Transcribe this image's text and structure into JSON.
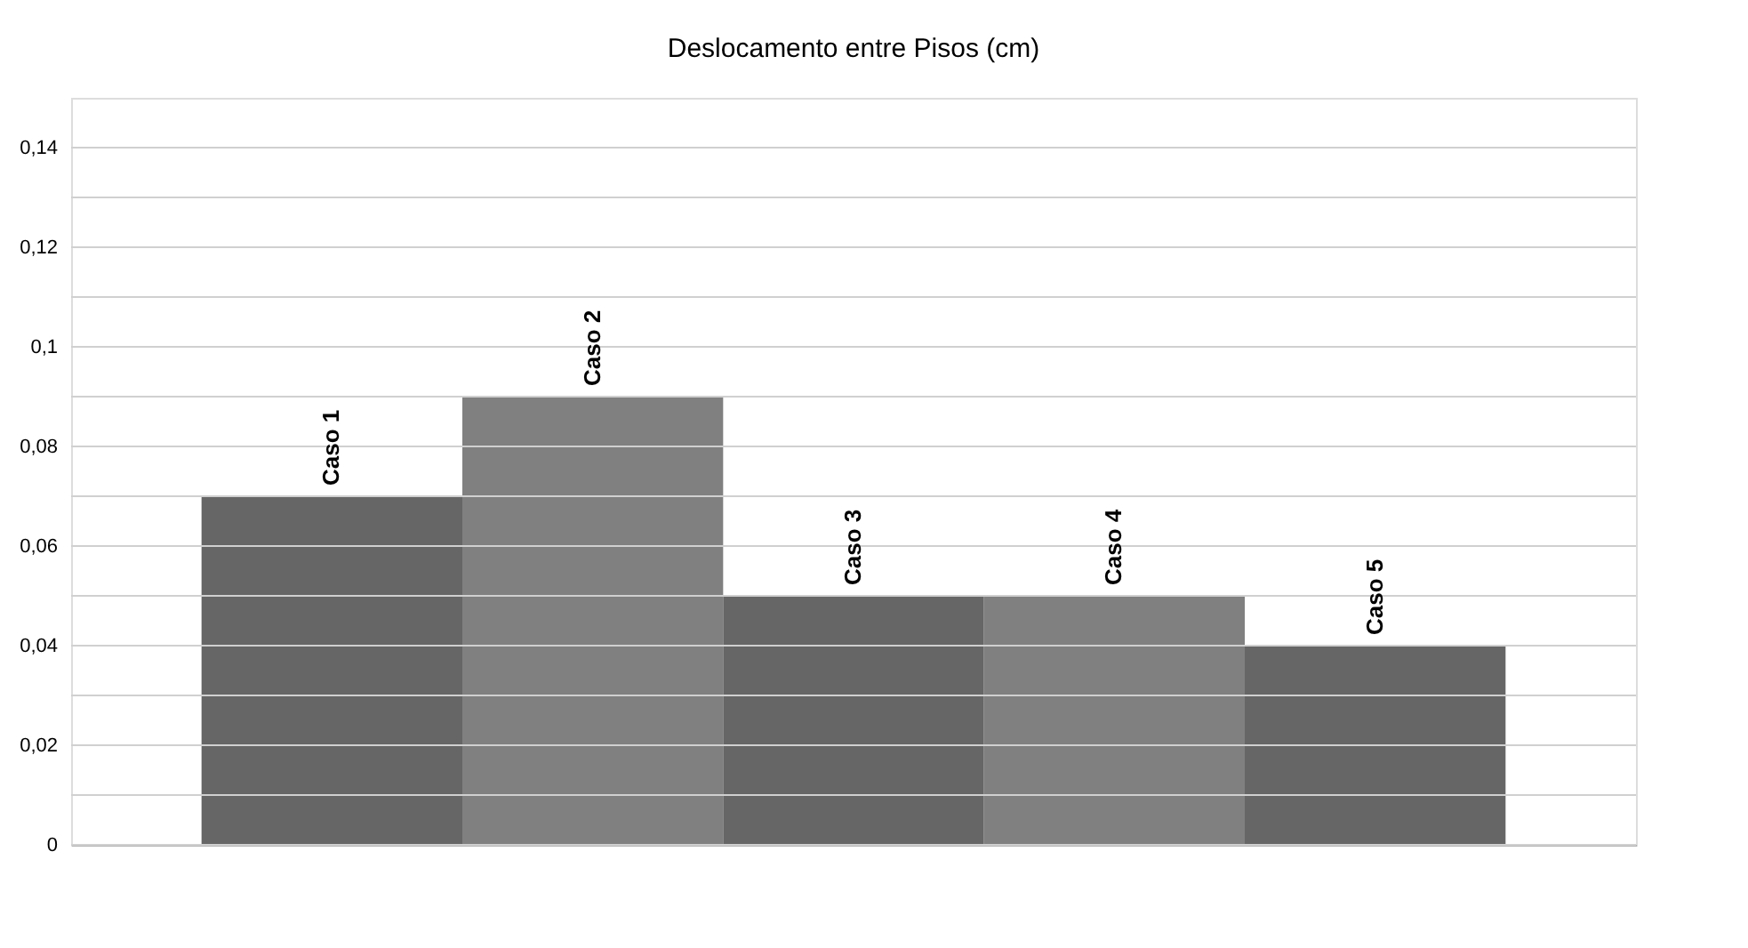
{
  "chart_data": {
    "type": "bar",
    "title": "Deslocamento entre Pisos (cm)",
    "categories": [
      "Caso 1",
      "Caso 2",
      "Caso 3",
      "Caso 4",
      "Caso 5"
    ],
    "values": [
      0.07,
      0.09,
      0.05,
      0.05,
      0.04
    ],
    "colors": [
      "#666666",
      "#808080",
      "#666666",
      "#808080",
      "#666666"
    ],
    "ylim": [
      0,
      0.15
    ],
    "yticks": [
      {
        "value": 0,
        "label": "0"
      },
      {
        "value": 0.01,
        "label": null
      },
      {
        "value": 0.02,
        "label": "0,02"
      },
      {
        "value": 0.03,
        "label": null
      },
      {
        "value": 0.04,
        "label": "0,04"
      },
      {
        "value": 0.05,
        "label": null
      },
      {
        "value": 0.06,
        "label": "0,06"
      },
      {
        "value": 0.07,
        "label": null
      },
      {
        "value": 0.08,
        "label": "0,08"
      },
      {
        "value": 0.09,
        "label": null
      },
      {
        "value": 0.1,
        "label": "0,1"
      },
      {
        "value": 0.11,
        "label": null
      },
      {
        "value": 0.12,
        "label": "0,12"
      },
      {
        "value": 0.13,
        "label": null
      },
      {
        "value": 0.14,
        "label": "0,14"
      }
    ],
    "grid": true,
    "tick_labels": "y"
  }
}
